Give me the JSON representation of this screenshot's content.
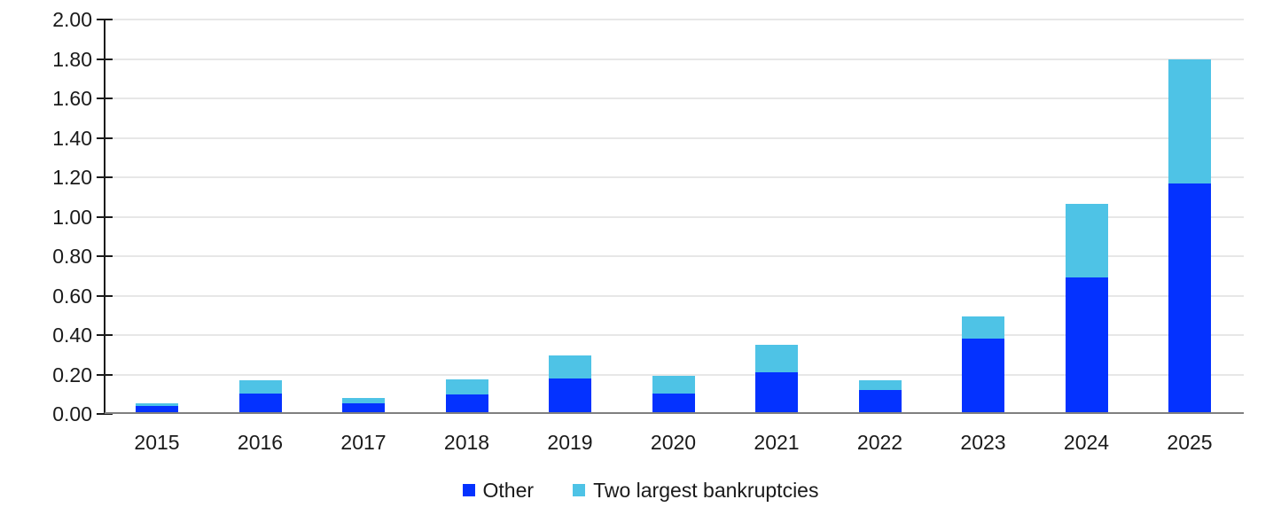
{
  "chart": {
    "background_color": "#ffffff",
    "text_color": "#1a1a1a",
    "gridline_color": "#e7e7e7",
    "axis_color": "#1a1a1a",
    "baseline_color": "#7f7f7f"
  },
  "chart_data": {
    "type": "bar",
    "stacked": true,
    "title": "",
    "xlabel": "",
    "ylabel": "",
    "categories": [
      "2015",
      "2016",
      "2017",
      "2018",
      "2019",
      "2020",
      "2021",
      "2022",
      "2023",
      "2024",
      "2025"
    ],
    "series": [
      {
        "name": "Other",
        "color": "#0432ff",
        "values": [
          0.04,
          0.105,
          0.055,
          0.1,
          0.18,
          0.105,
          0.21,
          0.12,
          0.38,
          0.69,
          1.17
        ]
      },
      {
        "name": "Two largest bankruptcies",
        "color": "#4ec3e6",
        "values": [
          0.015,
          0.065,
          0.025,
          0.075,
          0.115,
          0.09,
          0.14,
          0.05,
          0.115,
          0.375,
          0.63
        ]
      }
    ],
    "ylim": [
      0,
      2.0
    ],
    "yticks": [
      "0.00",
      "0.20",
      "0.40",
      "0.60",
      "0.80",
      "1.00",
      "1.20",
      "1.40",
      "1.60",
      "1.80",
      "2.00"
    ],
    "grid": "horizontal",
    "legend_position": "bottom-center"
  }
}
